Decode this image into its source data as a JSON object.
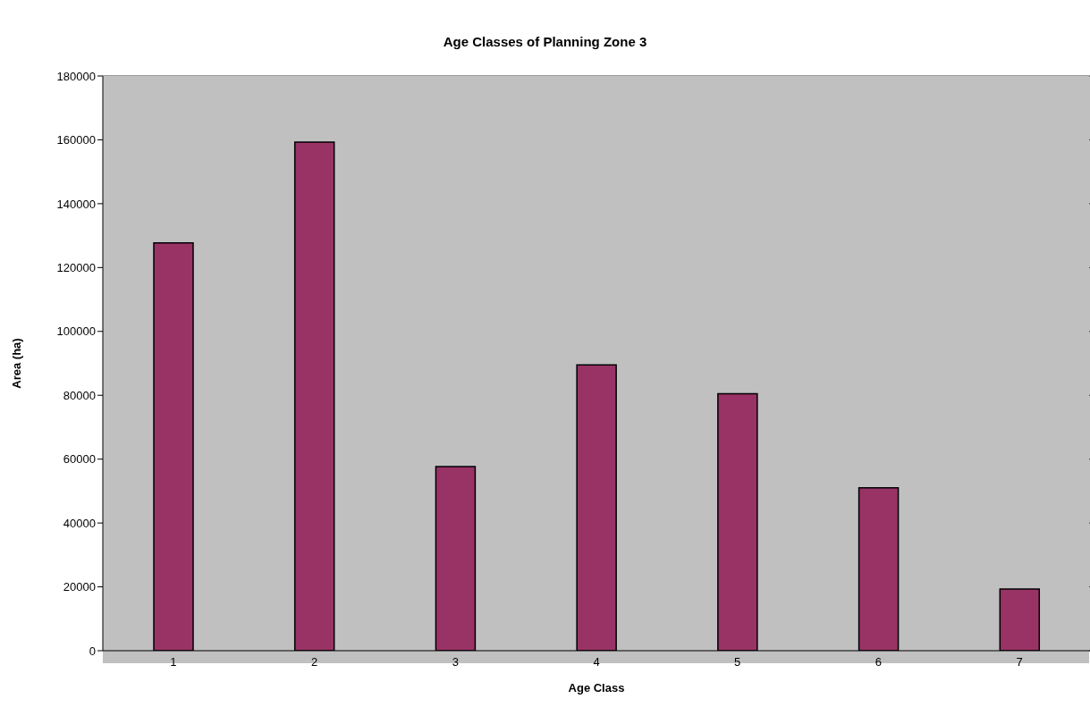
{
  "chart_data": {
    "type": "bar",
    "title": "Age Classes of Planning Zone 3",
    "xlabel": "Age Class",
    "ylabel": "Area (ha)",
    "categories": [
      "1",
      "2",
      "3",
      "4",
      "5",
      "6",
      "7"
    ],
    "values": [
      127700,
      159300,
      57700,
      89500,
      80500,
      51000,
      19300
    ],
    "color": "#993366",
    "ylim": [
      0,
      180000
    ],
    "yticks": [
      0,
      20000,
      40000,
      60000,
      80000,
      100000,
      120000,
      140000,
      160000,
      180000
    ],
    "grid": "y",
    "legend": false
  }
}
